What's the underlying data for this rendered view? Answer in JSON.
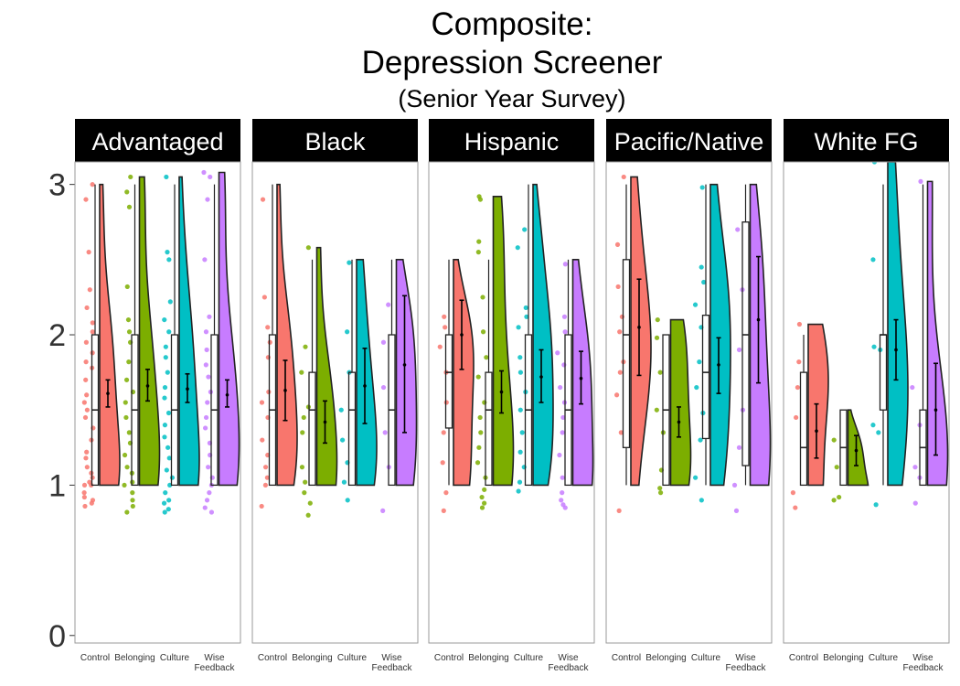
{
  "chart_data": {
    "type": "raincloud",
    "title": [
      "Composite:",
      "Depression Screener",
      "(Senior Year Survey)"
    ],
    "xlabel": "",
    "ylabel": "",
    "ylim": [
      -0.05,
      3.15
    ],
    "yticks": [
      0,
      1,
      2,
      3
    ],
    "grid": false,
    "categories": [
      "Control",
      "Belonging",
      "Culture",
      "Wise Feedback"
    ],
    "category_colors": [
      "#F8766D",
      "#7CAE00",
      "#00BFC4",
      "#C77CFF"
    ],
    "panels": [
      {
        "name": "Advantaged",
        "groups": [
          {
            "box": [
              1,
              1,
              1.5,
              2,
              3
            ],
            "mean": 1.61,
            "ci": [
              1.52,
              1.7
            ],
            "points": [
              0.86,
              0.88,
              0.9,
              0.92,
              0.95,
              1,
              1,
              1.02,
              1.05,
              1.08,
              1.12,
              1.18,
              1.22,
              1.3,
              1.38,
              1.45,
              1.5,
              1.55,
              1.6,
              1.7,
              1.78,
              1.82,
              1.88,
              1.95,
              2.02,
              2.08,
              2.18,
              2.3,
              2.55,
              2.9,
              3
            ]
          },
          {
            "box": [
              1,
              1,
              1.5,
              2,
              3
            ],
            "mean": 1.66,
            "ci": [
              1.56,
              1.77
            ],
            "points": [
              0.82,
              0.86,
              0.9,
              0.95,
              1,
              1.02,
              1.08,
              1.12,
              1.2,
              1.28,
              1.35,
              1.45,
              1.55,
              1.62,
              1.7,
              1.82,
              1.95,
              2.02,
              2.1,
              2.32,
              2.85,
              2.95,
              3.05
            ]
          },
          {
            "box": [
              1,
              1,
              1.5,
              2,
              3
            ],
            "mean": 1.64,
            "ci": [
              1.55,
              1.74
            ],
            "points": [
              0.82,
              0.84,
              0.88,
              0.9,
              0.95,
              1,
              1.05,
              1.1,
              1.18,
              1.25,
              1.32,
              1.4,
              1.48,
              1.58,
              1.65,
              1.75,
              1.85,
              1.92,
              2.02,
              2.1,
              2.22,
              2.5,
              2.55,
              3.05
            ]
          },
          {
            "box": [
              1,
              1,
              1.5,
              2,
              3
            ],
            "mean": 1.6,
            "ci": [
              1.52,
              1.7
            ],
            "points": [
              0.82,
              0.85,
              0.9,
              0.95,
              1,
              1.05,
              1.12,
              1.2,
              1.28,
              1.38,
              1.45,
              1.55,
              1.62,
              1.72,
              1.8,
              1.9,
              2.02,
              2.12,
              2.5,
              2.9,
              3.05,
              3.08
            ]
          }
        ]
      },
      {
        "name": "Black",
        "groups": [
          {
            "box": [
              1,
              1,
              1.5,
              2,
              3
            ],
            "mean": 1.63,
            "ci": [
              1.43,
              1.83
            ],
            "points": [
              0.86,
              1,
              1.05,
              1.12,
              1.2,
              1.3,
              1.45,
              1.55,
              1.62,
              1.85,
              1.95,
              2.05,
              2.25,
              2.9
            ]
          },
          {
            "box": [
              1,
              1,
              1.5,
              1.75,
              2.5
            ],
            "mean": 1.42,
            "ci": [
              1.28,
              1.56
            ],
            "points": [
              0.8,
              0.88,
              0.95,
              1.02,
              1.12,
              1.35,
              1.45,
              1.52,
              1.75,
              1.92,
              2.58
            ]
          },
          {
            "box": [
              1,
              1,
              1.5,
              1.75,
              2.5
            ],
            "mean": 1.66,
            "ci": [
              1.41,
              1.91
            ],
            "points": [
              0.9,
              1.02,
              1.15,
              1.3,
              1.5,
              1.75,
              2.02,
              2.48
            ]
          },
          {
            "box": [
              1,
              1,
              1.5,
              2,
              2.5
            ],
            "mean": 1.8,
            "ci": [
              1.35,
              2.26
            ],
            "points": [
              0.83,
              1.12,
              1.35,
              1.65,
              1.95,
              2.2
            ]
          }
        ]
      },
      {
        "name": "Hispanic",
        "groups": [
          {
            "box": [
              1,
              1.38,
              1.75,
              2,
              2.5
            ],
            "mean": 2.0,
            "ci": [
              1.77,
              2.23
            ],
            "points": [
              0.83,
              0.95,
              1.15,
              1.35,
              1.55,
              1.75,
              1.92,
              2.05,
              2.12
            ]
          },
          {
            "box": [
              1,
              1,
              1.5,
              1.75,
              2.5
            ],
            "mean": 1.62,
            "ci": [
              1.48,
              1.76
            ],
            "points": [
              0.85,
              0.88,
              0.92,
              0.97,
              1.05,
              1.15,
              1.25,
              1.35,
              1.45,
              1.55,
              1.72,
              1.85,
              2.02,
              2.25,
              2.55,
              2.62,
              2.9,
              2.92
            ]
          },
          {
            "box": [
              1,
              1,
              1.5,
              2,
              3
            ],
            "mean": 1.72,
            "ci": [
              1.55,
              1.9
            ],
            "points": [
              0.96,
              1.02,
              1.12,
              1.22,
              1.35,
              1.5,
              1.62,
              1.75,
              1.85,
              2.05,
              2.12,
              2.18,
              2.58,
              2.7
            ]
          },
          {
            "box": [
              1,
              1,
              1.5,
              2,
              2.5
            ],
            "mean": 1.71,
            "ci": [
              1.54,
              1.89
            ],
            "points": [
              0.85,
              0.87,
              0.9,
              0.95,
              1.05,
              1.2,
              1.35,
              1.45,
              1.55,
              1.65,
              1.8,
              1.88,
              2.02,
              2.12,
              2.47
            ]
          }
        ]
      },
      {
        "name": "Pacific/Native",
        "groups": [
          {
            "box": [
              1,
              1.25,
              2,
              2.5,
              3
            ],
            "mean": 2.05,
            "ci": [
              1.73,
              2.37
            ],
            "points": [
              0.83,
              1.35,
              1.6,
              1.75,
              1.82,
              2.02,
              2.12,
              2.32,
              2.6,
              3.05
            ]
          },
          {
            "box": [
              1,
              1,
              1.5,
              2,
              2
            ],
            "mean": 1.42,
            "ci": [
              1.32,
              1.52
            ],
            "points": [
              0.95,
              0.98,
              1.1,
              1.35,
              1.5,
              1.75,
              1.98,
              2.1
            ]
          },
          {
            "box": [
              1,
              1.31,
              1.75,
              2.13,
              3
            ],
            "mean": 1.8,
            "ci": [
              1.61,
              1.98
            ],
            "points": [
              0.9,
              1.05,
              1.3,
              1.48,
              1.65,
              1.82,
              2.05,
              2.2,
              2.35,
              2.45,
              2.98
            ]
          },
          {
            "box": [
              1,
              1.13,
              2,
              2.75,
              3
            ],
            "mean": 2.1,
            "ci": [
              1.68,
              2.52
            ],
            "points": [
              0.83,
              1,
              1.25,
              1.5,
              1.9,
              2.3,
              2.7
            ]
          }
        ]
      },
      {
        "name": "White FG",
        "groups": [
          {
            "box": [
              1,
              1,
              1.25,
              1.75,
              2
            ],
            "mean": 1.36,
            "ci": [
              1.18,
              1.54
            ],
            "points": [
              0.85,
              0.95,
              1.45,
              1.65,
              1.82,
              2.07
            ]
          },
          {
            "box": [
              1,
              1,
              1.25,
              1.5,
              1.5
            ],
            "mean": 1.23,
            "ci": [
              1.13,
              1.33
            ],
            "points": [
              0.9,
              0.92,
              1.12,
              1.3
            ]
          },
          {
            "box": [
              1,
              1.5,
              2,
              2,
              3
            ],
            "mean": 1.9,
            "ci": [
              1.7,
              2.1
            ],
            "points": [
              0.87,
              1.35,
              1.4,
              1.9,
              1.92,
              2.5,
              3.15
            ]
          },
          {
            "box": [
              1,
              1,
              1.25,
              1.5,
              3
            ],
            "mean": 1.5,
            "ci": [
              1.2,
              1.81
            ],
            "points": [
              0.88,
              1.05,
              1.12,
              1.4,
              1.65,
              3.02
            ]
          }
        ]
      }
    ]
  }
}
